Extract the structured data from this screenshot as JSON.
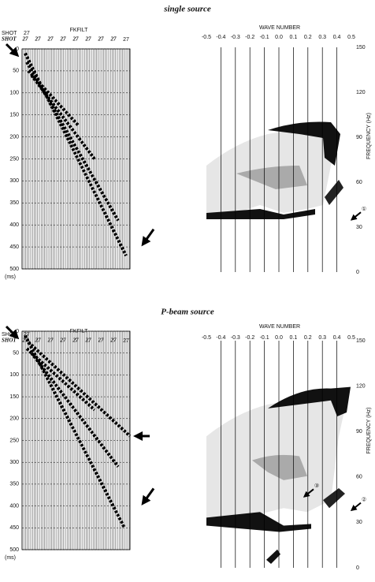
{
  "figures": [
    {
      "title": "single source",
      "shot_header": [
        "SHOT",
        "SHOT"
      ],
      "shot_top": "27",
      "filter_label": "FKFILT",
      "shot_numbers": [
        "27",
        "27",
        "27",
        "27",
        "27",
        "27",
        "27",
        "27",
        "27"
      ],
      "time_ticks": [
        0,
        50,
        100,
        150,
        200,
        250,
        300,
        350,
        400,
        450,
        500
      ],
      "time_unit": "(ms)",
      "wavenumber_label": "WAVE NUMBER",
      "wavenumber_ticks": [
        "-0.5",
        "-0.4",
        "-0.3",
        "-0.2",
        "-0.1",
        "0.0",
        "0.1",
        "0.2",
        "0.3",
        "0.4",
        "0.5"
      ],
      "frequency_label": "FREQUENCY (Hz)",
      "frequency_ticks": [
        150,
        120,
        90,
        60,
        30,
        0
      ],
      "markers": [
        "①"
      ]
    },
    {
      "title": "P-beam source",
      "shot_header": [
        "SHOT",
        "SHOT"
      ],
      "shot_top": "27",
      "filter_label": "FKFILT",
      "shot_numbers": [
        "27",
        "27",
        "27",
        "27",
        "27",
        "27",
        "27",
        "27",
        "27"
      ],
      "time_ticks": [
        0,
        50,
        100,
        150,
        200,
        250,
        300,
        350,
        400,
        450,
        500
      ],
      "time_unit": "(ms)",
      "wavenumber_label": "WAVE NUMBER",
      "wavenumber_ticks": [
        "-0.5",
        "-0.4",
        "-0.3",
        "-0.2",
        "-0.1",
        "0.0",
        "0.1",
        "0.2",
        "0.3",
        "0.4",
        "0.5"
      ],
      "frequency_label": "FREQUENCY (Hz)",
      "frequency_ticks": [
        150,
        120,
        90,
        60,
        30,
        0
      ],
      "markers": [
        "③",
        "②"
      ]
    }
  ]
}
